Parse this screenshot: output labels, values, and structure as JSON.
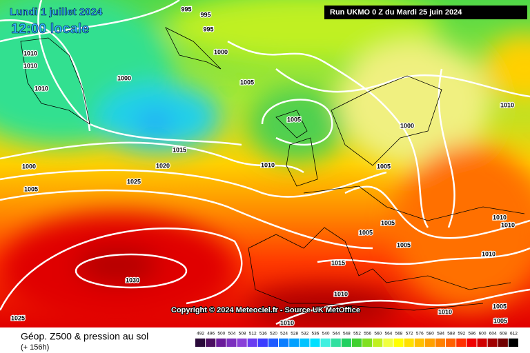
{
  "header": {
    "date": "Lundi 1 juillet 2024",
    "time": "12:00 locale",
    "run": "Run UKMO 0 Z du Mardi 25 juin 2024"
  },
  "copyright": "Copyright © 2024 Meteociel.fr - Source UK MetOffice",
  "isobars": [
    995,
    995,
    995,
    1000,
    1010,
    1010,
    1010,
    1000,
    1005,
    1005,
    1000,
    1010,
    1015,
    1020,
    1000,
    1010,
    1005,
    1025,
    1005,
    1005,
    1005,
    1005,
    1010,
    1010,
    1010,
    1015,
    1030,
    1010,
    1005,
    1010,
    1010,
    1025,
    1005
  ],
  "legend": {
    "title": "Géop. Z500 & pression au sol",
    "lead": "(+ 156h)",
    "scale": [
      {
        "value": 492,
        "color": "#2a0a3a"
      },
      {
        "value": 496,
        "color": "#4b0f60"
      },
      {
        "value": 500,
        "color": "#6a1b9a"
      },
      {
        "value": 504,
        "color": "#7b2fbe"
      },
      {
        "value": 508,
        "color": "#8a40d8"
      },
      {
        "value": 512,
        "color": "#6a3cf0"
      },
      {
        "value": 516,
        "color": "#3c3cff"
      },
      {
        "value": 520,
        "color": "#1e5aff"
      },
      {
        "value": 524,
        "color": "#0a7dff"
      },
      {
        "value": 528,
        "color": "#00a0ff"
      },
      {
        "value": 532,
        "color": "#00c3ff"
      },
      {
        "value": 536,
        "color": "#00e0ff"
      },
      {
        "value": 540,
        "color": "#40f0e0"
      },
      {
        "value": 544,
        "color": "#30e0a0"
      },
      {
        "value": 548,
        "color": "#20d060"
      },
      {
        "value": 552,
        "color": "#40d030"
      },
      {
        "value": 556,
        "color": "#80e020"
      },
      {
        "value": 560,
        "color": "#c0f020"
      },
      {
        "value": 564,
        "color": "#f0ff40"
      },
      {
        "value": 568,
        "color": "#ffff00"
      },
      {
        "value": 572,
        "color": "#ffe000"
      },
      {
        "value": 576,
        "color": "#ffc000"
      },
      {
        "value": 580,
        "color": "#ffa000"
      },
      {
        "value": 584,
        "color": "#ff8000"
      },
      {
        "value": 588,
        "color": "#ff6000"
      },
      {
        "value": 592,
        "color": "#ff3000"
      },
      {
        "value": 596,
        "color": "#f00000"
      },
      {
        "value": 600,
        "color": "#d00000"
      },
      {
        "value": 604,
        "color": "#a00000"
      },
      {
        "value": 608,
        "color": "#700000"
      },
      {
        "value": 612,
        "color": "#000000"
      }
    ]
  }
}
